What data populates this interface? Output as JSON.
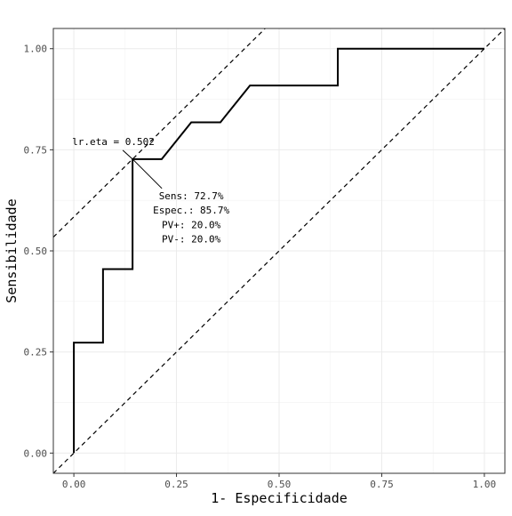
{
  "chart_data": {
    "type": "line",
    "title": "",
    "xlabel": "1- Especificidade",
    "ylabel": "Sensibilidade",
    "xlim": [
      -0.05,
      1.05
    ],
    "ylim": [
      -0.05,
      1.05
    ],
    "grid": true,
    "x_ticks": [
      0.0,
      0.25,
      0.5,
      0.75,
      1.0
    ],
    "x_tick_labels": [
      "0.00",
      "0.25",
      "0.50",
      "0.75",
      "1.00"
    ],
    "y_ticks": [
      0.0,
      0.25,
      0.5,
      0.75,
      1.0
    ],
    "y_tick_labels": [
      "0.00",
      "0.25",
      "0.50",
      "0.75",
      "1.00"
    ],
    "series": [
      {
        "style": "step",
        "color": "#000000",
        "points": [
          [
            0.0,
            0.0
          ],
          [
            0.0,
            0.273
          ],
          [
            0.071,
            0.273
          ],
          [
            0.071,
            0.455
          ],
          [
            0.143,
            0.455
          ],
          [
            0.143,
            0.727
          ],
          [
            0.214,
            0.727
          ],
          [
            0.286,
            0.818
          ],
          [
            0.357,
            0.818
          ],
          [
            0.429,
            0.909
          ],
          [
            0.643,
            0.909
          ],
          [
            0.643,
            1.0
          ],
          [
            1.0,
            1.0
          ]
        ]
      }
    ],
    "reference_lines": [
      {
        "style": "dashed",
        "color": "#000000",
        "intercept": 0.0,
        "slope": 1.0
      },
      {
        "style": "dashed",
        "color": "#000000",
        "intercept": 0.584,
        "slope": 1.0
      }
    ],
    "annotation": {
      "point": [
        0.143,
        0.727
      ],
      "cutoff_label": "lr.eta = 0.502",
      "stats_lines": [
        "Sens: 72.7%",
        "Espec.: 85.7%",
        "PV+: 20.0%",
        "PV-: 20.0%"
      ]
    }
  }
}
